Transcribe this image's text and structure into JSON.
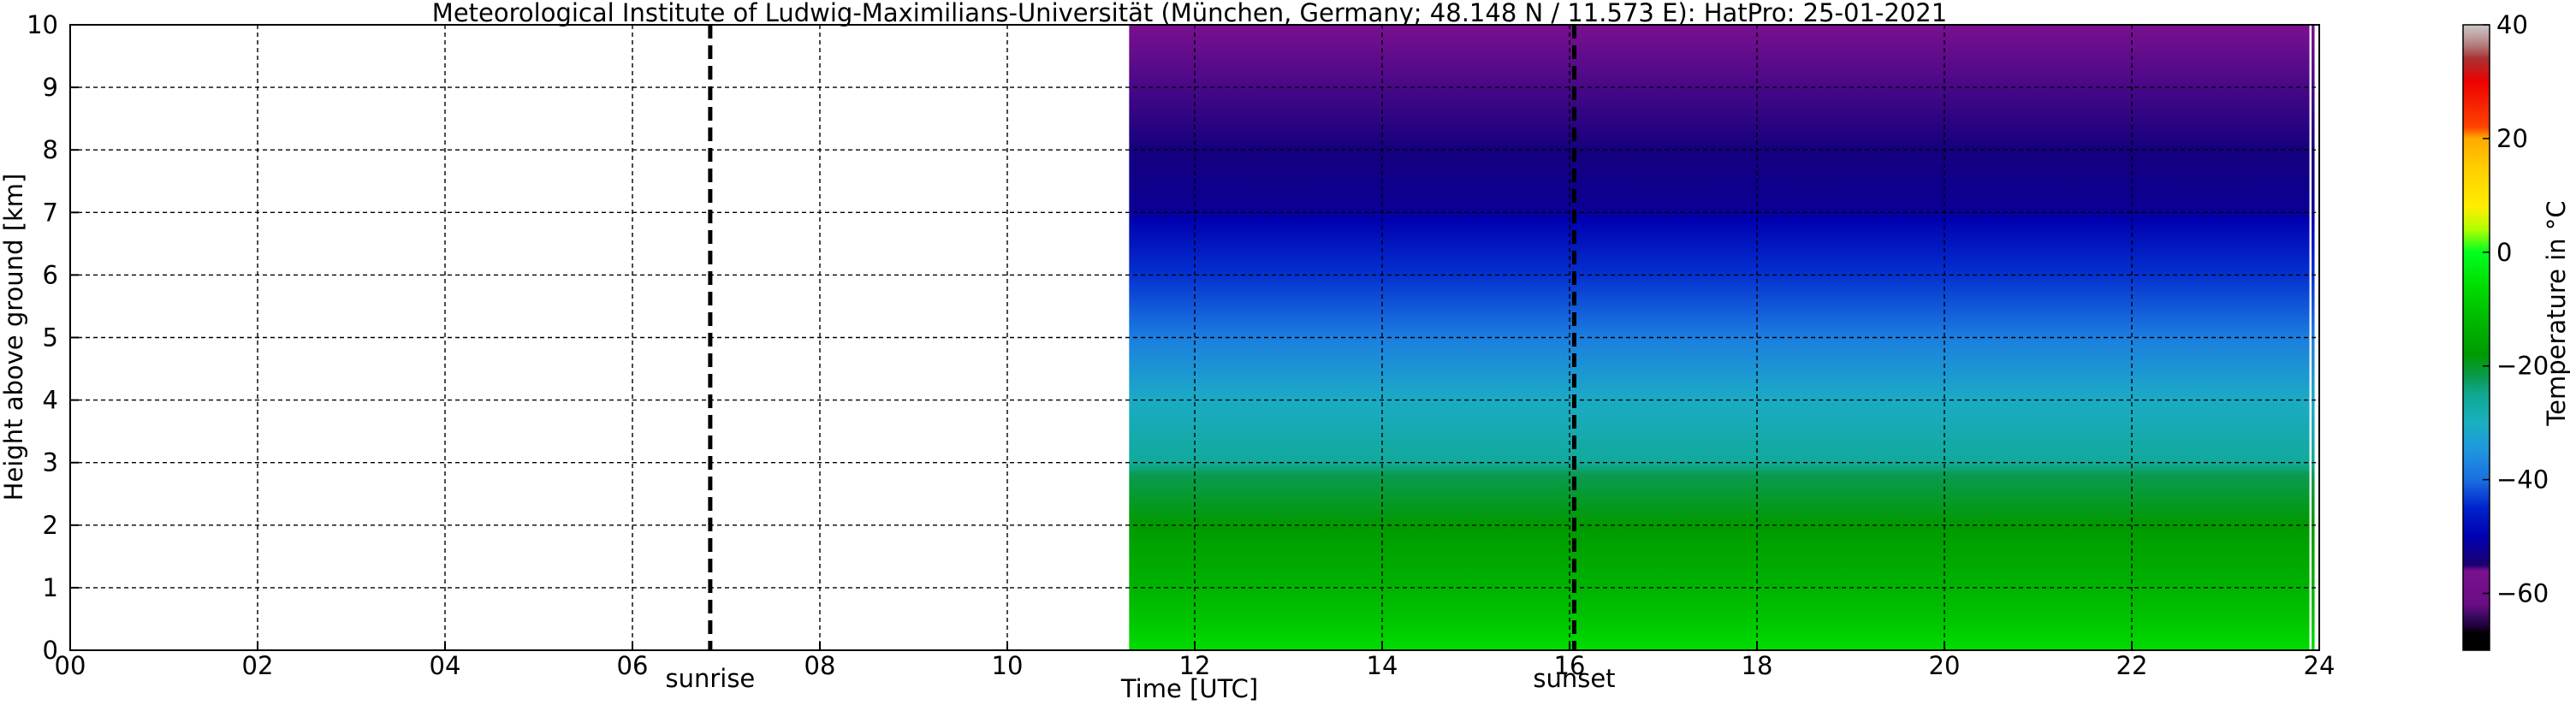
{
  "chart_data": {
    "type": "heatmap",
    "title": "Meteorological Institute of Ludwig-Maximilians-Universität (München, Germany; 48.148 N / 11.573 E):    HatPro: 25-01-2021",
    "xlabel": "Time [UTC]",
    "ylabel": "Height above ground [km]",
    "xlim": [
      0,
      24
    ],
    "ylim": [
      0,
      10
    ],
    "x_ticks": [
      "00",
      "02",
      "04",
      "06",
      "08",
      "10",
      "12",
      "14",
      "16",
      "18",
      "20",
      "22",
      "24"
    ],
    "y_ticks": [
      "0",
      "1",
      "2",
      "3",
      "4",
      "5",
      "6",
      "7",
      "8",
      "9",
      "10"
    ],
    "grid": true,
    "data_start_time": 11.3,
    "data_end_time": 23.95,
    "markers": [
      {
        "label": "sunrise",
        "time": 6.83
      },
      {
        "label": "sunset",
        "time": 16.05
      }
    ],
    "temperature_profile": [
      {
        "height_km": 0.0,
        "temp_c": -6
      },
      {
        "height_km": 0.5,
        "temp_c": -10
      },
      {
        "height_km": 1.0,
        "temp_c": -13
      },
      {
        "height_km": 2.0,
        "temp_c": -18
      },
      {
        "height_km": 2.8,
        "temp_c": -22
      },
      {
        "height_km": 3.0,
        "temp_c": -26
      },
      {
        "height_km": 4.0,
        "temp_c": -31
      },
      {
        "height_km": 5.0,
        "temp_c": -38
      },
      {
        "height_km": 6.0,
        "temp_c": -44
      },
      {
        "height_km": 6.9,
        "temp_c": -50
      },
      {
        "height_km": 7.0,
        "temp_c": -52
      },
      {
        "height_km": 8.0,
        "temp_c": -54
      },
      {
        "height_km": 10.0,
        "temp_c": -56
      }
    ],
    "colorbar": {
      "label": "Temperature in °C",
      "min": -70,
      "max": 40,
      "ticks": [
        "40",
        "20",
        "0",
        "−20",
        "−40",
        "−60"
      ],
      "tick_values": [
        40,
        20,
        0,
        -20,
        -40,
        -60
      ],
      "stops": [
        {
          "value": -70,
          "color": "#000000"
        },
        {
          "value": -67,
          "color": "#000000"
        },
        {
          "value": -66,
          "color": "#1a0033"
        },
        {
          "value": -64,
          "color": "#3b0a60"
        },
        {
          "value": -62,
          "color": "#6a0d83"
        },
        {
          "value": -56,
          "color": "#7a1090"
        },
        {
          "value": -55,
          "color": "#1a0070"
        },
        {
          "value": -50,
          "color": "#0000b0"
        },
        {
          "value": -45,
          "color": "#0022cc"
        },
        {
          "value": -40,
          "color": "#1a6fe0"
        },
        {
          "value": -35,
          "color": "#1f95e0"
        },
        {
          "value": -30,
          "color": "#1ab0c0"
        },
        {
          "value": -25,
          "color": "#10a890"
        },
        {
          "value": -22,
          "color": "#0a9a50"
        },
        {
          "value": -18,
          "color": "#009a00"
        },
        {
          "value": -12,
          "color": "#00b800"
        },
        {
          "value": -6,
          "color": "#00dd00"
        },
        {
          "value": 0,
          "color": "#00ff20"
        },
        {
          "value": 4,
          "color": "#b0ff00"
        },
        {
          "value": 8,
          "color": "#ffee00"
        },
        {
          "value": 15,
          "color": "#ffcc00"
        },
        {
          "value": 20,
          "color": "#ffaa00"
        },
        {
          "value": 22,
          "color": "#ff4400"
        },
        {
          "value": 30,
          "color": "#ee0000"
        },
        {
          "value": 34,
          "color": "#aa3030"
        },
        {
          "value": 36,
          "color": "#b07070"
        },
        {
          "value": 38,
          "color": "#c0a0a0"
        },
        {
          "value": 40,
          "color": "#c8c8c8"
        }
      ]
    }
  }
}
